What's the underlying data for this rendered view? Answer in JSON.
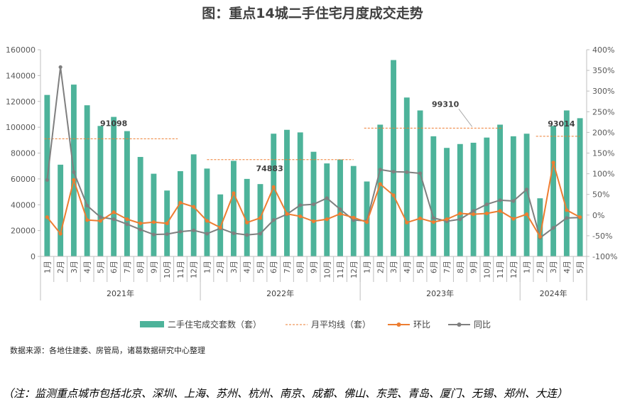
{
  "title": "图：重点14城二手住宅月度成交走势",
  "chart_data": {
    "type": "bar+line",
    "title": "图：重点14城二手住宅月度成交走势",
    "years": [
      {
        "label": "2021年",
        "count": 12
      },
      {
        "label": "2022年",
        "count": 12
      },
      {
        "label": "2023年",
        "count": 12
      },
      {
        "label": "2024年",
        "count": 5
      }
    ],
    "categories": [
      "1月",
      "2月",
      "3月",
      "4月",
      "5月",
      "6月",
      "7月",
      "8月",
      "9月",
      "10月",
      "11月",
      "12月",
      "1月",
      "2月",
      "3月",
      "4月",
      "5月",
      "6月",
      "7月",
      "8月",
      "9月",
      "10月",
      "11月",
      "12月",
      "1月",
      "2月",
      "3月",
      "4月",
      "5月",
      "6月",
      "7月",
      "8月",
      "9月",
      "10月",
      "11月",
      "12月",
      "1月",
      "2月",
      "3月",
      "4月",
      "5月"
    ],
    "y_left": {
      "min": 0,
      "max": 160000,
      "step": 20000,
      "ticks": [
        "0",
        "20000",
        "40000",
        "60000",
        "80000",
        "100000",
        "120000",
        "140000",
        "160000"
      ]
    },
    "y_right": {
      "min": -100,
      "max": 400,
      "step": 50,
      "ticks": [
        "-100%",
        "-50%",
        "0%",
        "50%",
        "100%",
        "150%",
        "200%",
        "250%",
        "300%",
        "350%",
        "400%"
      ]
    },
    "series": [
      {
        "name": "二手住宅成交套数（套）",
        "type": "bar",
        "axis": "left",
        "color": "#4DB39A",
        "values": [
          125000,
          71000,
          133000,
          117000,
          101000,
          108000,
          97000,
          77000,
          64000,
          51000,
          66000,
          79000,
          68000,
          48000,
          74000,
          60000,
          56000,
          95000,
          98000,
          96000,
          81000,
          72000,
          75000,
          70000,
          58000,
          102000,
          152000,
          123000,
          113000,
          93000,
          84000,
          87000,
          88000,
          92000,
          102000,
          93000,
          95000,
          45000,
          101000,
          113000,
          107000
        ]
      },
      {
        "name": "环比",
        "type": "line",
        "axis": "right",
        "color": "#ED7D31",
        "values": [
          -5,
          -45,
          85,
          -12,
          -14,
          7,
          -10,
          -20,
          -17,
          -20,
          30,
          20,
          -14,
          -30,
          53,
          -18,
          -7,
          68,
          3,
          -3,
          -15,
          -10,
          3,
          -6,
          -17,
          75,
          48,
          -18,
          -8,
          -17,
          -10,
          4,
          2,
          4,
          10,
          -9,
          2,
          -52,
          127,
          12,
          -5
        ]
      },
      {
        "name": "同比",
        "type": "line",
        "axis": "right",
        "color": "#7F7F7F",
        "values": [
          85,
          358,
          104,
          23,
          -5,
          -10,
          -22,
          -35,
          -47,
          -46,
          -40,
          -37,
          -45,
          -32,
          -44,
          -48,
          -45,
          -12,
          2,
          24,
          26,
          41,
          14,
          -12,
          -14,
          110,
          105,
          104,
          101,
          -7,
          -15,
          -10,
          10,
          26,
          36,
          34,
          62,
          -55,
          -31,
          -7,
          -6
        ]
      },
      {
        "name": "月平均线（套）",
        "type": "dashed",
        "axis": "left",
        "color": "#ED7D31",
        "segments": [
          {
            "year": "2021年",
            "value": 91098
          },
          {
            "year": "2022年",
            "value": 74883
          },
          {
            "year": "2023年",
            "value": 99310
          },
          {
            "year": "2024年",
            "value": 93014
          }
        ]
      }
    ],
    "annotations": [
      "91098",
      "74883",
      "99310",
      "93014"
    ],
    "legend": [
      "二手住宅成交套数（套）",
      "月平均线（套）",
      "环比",
      "同比"
    ],
    "legend_position": "bottom"
  },
  "source": "数据来源：各地住建委、房管局，诸葛数据研究中心整理",
  "note": "（注：监测重点城市包括北京、深圳、上海、苏州、杭州、南京、成都、佛山、东莞、青岛、厦门、无锡、郑州、大连）",
  "colors": {
    "bar": "#4DB39A",
    "mom": "#ED7D31",
    "yoy": "#7F7F7F",
    "avg": "#ED7D31",
    "axis": "#BFBFBF",
    "text": "#595959"
  }
}
